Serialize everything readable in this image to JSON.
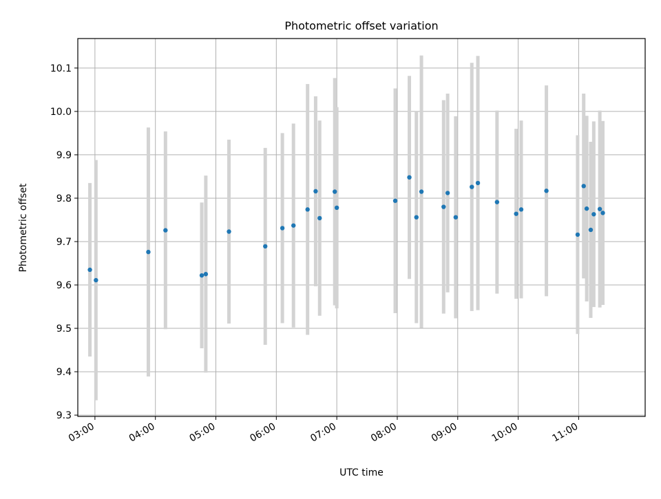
{
  "chart_data": {
    "type": "scatter",
    "title": "Photometric offset variation",
    "xlabel": "UTC time",
    "ylabel": "Photometric offset",
    "x_unit": "UTC time (HH:MM)",
    "xlim": [
      "02:43",
      "12:06"
    ],
    "ylim": [
      9.297,
      10.168
    ],
    "x_ticks": [
      "03:00",
      "04:00",
      "05:00",
      "06:00",
      "07:00",
      "08:00",
      "09:00",
      "10:00",
      "11:00"
    ],
    "y_ticks": [
      "9.3",
      "9.4",
      "9.5",
      "9.6",
      "9.7",
      "9.8",
      "9.9",
      "10.0",
      "10.1"
    ],
    "grid": true,
    "colors": {
      "marker": "#1f77b4",
      "errorbar": "#d3d3d3",
      "grid": "#b0b0b0"
    },
    "series": [
      {
        "points": [
          {
            "x": "02:55",
            "y": 9.635,
            "err": 0.2
          },
          {
            "x": "03:01",
            "y": 9.611,
            "err": 0.277
          },
          {
            "x": "03:53",
            "y": 9.676,
            "err": 0.287
          },
          {
            "x": "04:10",
            "y": 9.726,
            "err": 0.228
          },
          {
            "x": "04:46",
            "y": 9.622,
            "err": 0.168
          },
          {
            "x": "04:50",
            "y": 9.625,
            "err": 0.227
          },
          {
            "x": "05:13",
            "y": 9.723,
            "err": 0.212
          },
          {
            "x": "05:49",
            "y": 9.689,
            "err": 0.227
          },
          {
            "x": "06:06",
            "y": 9.731,
            "err": 0.219
          },
          {
            "x": "06:17",
            "y": 9.737,
            "err": 0.235
          },
          {
            "x": "06:31",
            "y": 9.774,
            "err": 0.289
          },
          {
            "x": "06:39",
            "y": 9.816,
            "err": 0.219
          },
          {
            "x": "06:43",
            "y": 9.754,
            "err": 0.225
          },
          {
            "x": "06:58",
            "y": 9.815,
            "err": 0.262
          },
          {
            "x": "07:00",
            "y": 9.778,
            "err": 0.232
          },
          {
            "x": "07:58",
            "y": 9.794,
            "err": 0.259
          },
          {
            "x": "08:12",
            "y": 9.848,
            "err": 0.234
          },
          {
            "x": "08:19",
            "y": 9.756,
            "err": 0.244
          },
          {
            "x": "08:24",
            "y": 9.815,
            "err": 0.314
          },
          {
            "x": "08:46",
            "y": 9.78,
            "err": 0.246
          },
          {
            "x": "08:50",
            "y": 9.812,
            "err": 0.229
          },
          {
            "x": "08:58",
            "y": 9.756,
            "err": 0.233
          },
          {
            "x": "09:14",
            "y": 9.826,
            "err": 0.286
          },
          {
            "x": "09:20",
            "y": 9.835,
            "err": 0.293
          },
          {
            "x": "09:39",
            "y": 9.791,
            "err": 0.211
          },
          {
            "x": "09:58",
            "y": 9.764,
            "err": 0.196
          },
          {
            "x": "10:03",
            "y": 9.774,
            "err": 0.205
          },
          {
            "x": "10:28",
            "y": 9.817,
            "err": 0.243
          },
          {
            "x": "10:59",
            "y": 9.716,
            "err": 0.229
          },
          {
            "x": "11:05",
            "y": 9.828,
            "err": 0.213
          },
          {
            "x": "11:08",
            "y": 9.776,
            "err": 0.214
          },
          {
            "x": "11:12",
            "y": 9.727,
            "err": 0.203
          },
          {
            "x": "11:15",
            "y": 9.763,
            "err": 0.214
          },
          {
            "x": "11:21",
            "y": 9.775,
            "err": 0.227
          },
          {
            "x": "11:24",
            "y": 9.766,
            "err": 0.212
          }
        ]
      }
    ]
  }
}
